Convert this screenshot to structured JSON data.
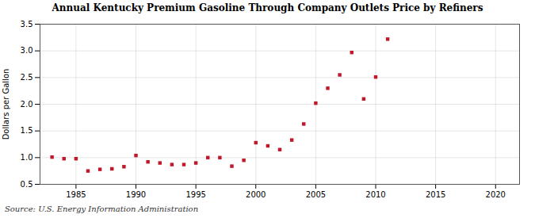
{
  "chart_data": {
    "type": "scatter",
    "title": "Annual Kentucky Premium Gasoline Through Company Outlets Price by Refiners",
    "ylabel": "Dollars per Gallon",
    "annotation": "Source: U.S. Energy Information Administration",
    "x": [
      1983,
      1984,
      1985,
      1986,
      1987,
      1988,
      1989,
      1990,
      1991,
      1992,
      1993,
      1994,
      1995,
      1996,
      1997,
      1998,
      1999,
      2000,
      2001,
      2002,
      2003,
      2004,
      2005,
      2006,
      2007,
      2008,
      2009,
      2010,
      2011
    ],
    "values": [
      1.01,
      0.98,
      0.98,
      0.75,
      0.78,
      0.79,
      0.83,
      1.04,
      0.92,
      0.9,
      0.87,
      0.87,
      0.9,
      1.0,
      1.0,
      0.84,
      0.95,
      1.28,
      1.22,
      1.15,
      1.33,
      1.63,
      2.02,
      2.3,
      2.55,
      2.97,
      2.1,
      2.51,
      3.22
    ],
    "color": "#c0182a",
    "marker": "square",
    "xlim": [
      1982,
      2022
    ],
    "ylim": [
      0.5,
      3.5
    ],
    "xticks": [
      1985,
      1990,
      1995,
      2000,
      2005,
      2010,
      2015,
      2020
    ],
    "yticks": [
      0.5,
      {
        "value": 1,
        "label": "1.0"
      },
      1.5,
      {
        "value": 2,
        "label": "2.0"
      },
      2.5,
      {
        "value": 3,
        "label": "3.0"
      },
      3.5
    ],
    "grid": true
  }
}
